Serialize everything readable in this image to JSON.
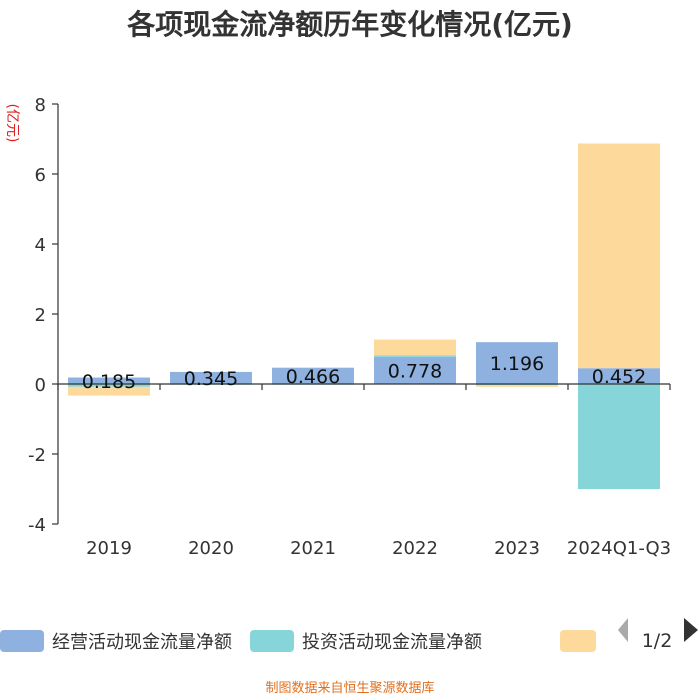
{
  "chart_data": {
    "type": "bar",
    "title": "各项现金流净额历年变化情况(亿元)",
    "ylabel": "(亿元)",
    "categories": [
      "2019",
      "2020",
      "2021",
      "2022",
      "2023",
      "2024Q1-Q3"
    ],
    "ylim": [
      -4,
      8
    ],
    "yticks": [
      8,
      6,
      4,
      2,
      0,
      -2,
      -4
    ],
    "ytick_labels": [
      "8",
      "6",
      "4",
      "2",
      "0",
      "-2",
      "-4"
    ],
    "series": [
      {
        "name": "经营活动现金流量净额",
        "color": "#8eb1e0",
        "values": [
          0.185,
          0.345,
          0.466,
          0.778,
          1.196,
          0.452
        ],
        "labels": [
          "0.185",
          "0.345",
          "0.466",
          "0.778",
          "1.196",
          "0.452"
        ]
      },
      {
        "name": "投资活动现金流量净额",
        "color": "#86d5d9",
        "values": [
          -0.08,
          -0.02,
          -0.02,
          0.04,
          -0.03,
          -3.0
        ]
      },
      {
        "color": "#fdd99b",
        "values": [
          -0.25,
          0.0,
          0.0,
          0.45,
          -0.05,
          6.42
        ]
      }
    ],
    "legend_position": "bottom",
    "grid": false
  },
  "legend_pager": {
    "text": "1/2"
  },
  "source": "制图数据来自恒生聚源数据库"
}
